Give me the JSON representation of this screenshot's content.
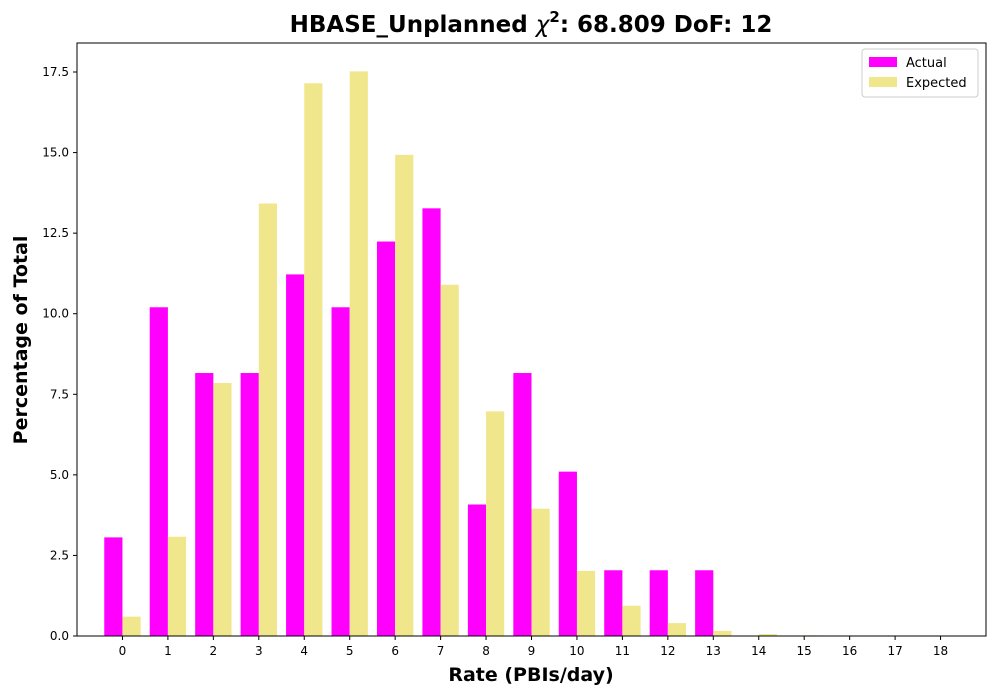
{
  "chart_data": {
    "type": "bar",
    "title": {
      "prefix": "HBASE_Unplanned ",
      "symbol": "χ",
      "superscript": "2",
      "suffix": ": 68.809 DoF: 12"
    },
    "xlabel": "Rate (PBIs/day)",
    "ylabel": "Percentage of Total",
    "categories": [
      "0",
      "1",
      "2",
      "3",
      "4",
      "5",
      "6",
      "7",
      "8",
      "9",
      "10",
      "11",
      "12",
      "13",
      "14",
      "15",
      "16",
      "17",
      "18"
    ],
    "series": [
      {
        "name": "Actual",
        "color": "#ff00ff",
        "values": [
          3.06,
          10.2,
          8.16,
          8.16,
          11.22,
          10.2,
          12.24,
          13.27,
          4.08,
          8.16,
          5.1,
          2.04,
          2.04,
          2.04,
          0,
          0,
          0,
          0,
          0
        ]
      },
      {
        "name": "Expected",
        "color": "#f0e68c",
        "values": [
          0.6,
          3.08,
          7.85,
          13.42,
          17.15,
          17.52,
          14.93,
          10.9,
          6.97,
          3.95,
          2.02,
          0.94,
          0.4,
          0.16,
          0.06,
          0.02,
          0.01,
          0,
          0
        ]
      }
    ],
    "yticks": [
      0.0,
      2.5,
      5.0,
      7.5,
      10.0,
      12.5,
      15.0,
      17.5
    ],
    "ytick_labels": [
      "0.0",
      "2.5",
      "5.0",
      "7.5",
      "10.0",
      "12.5",
      "15.0",
      "17.5"
    ],
    "ylim": [
      0,
      18.4
    ],
    "grid": false,
    "legend_position": "top-right"
  }
}
